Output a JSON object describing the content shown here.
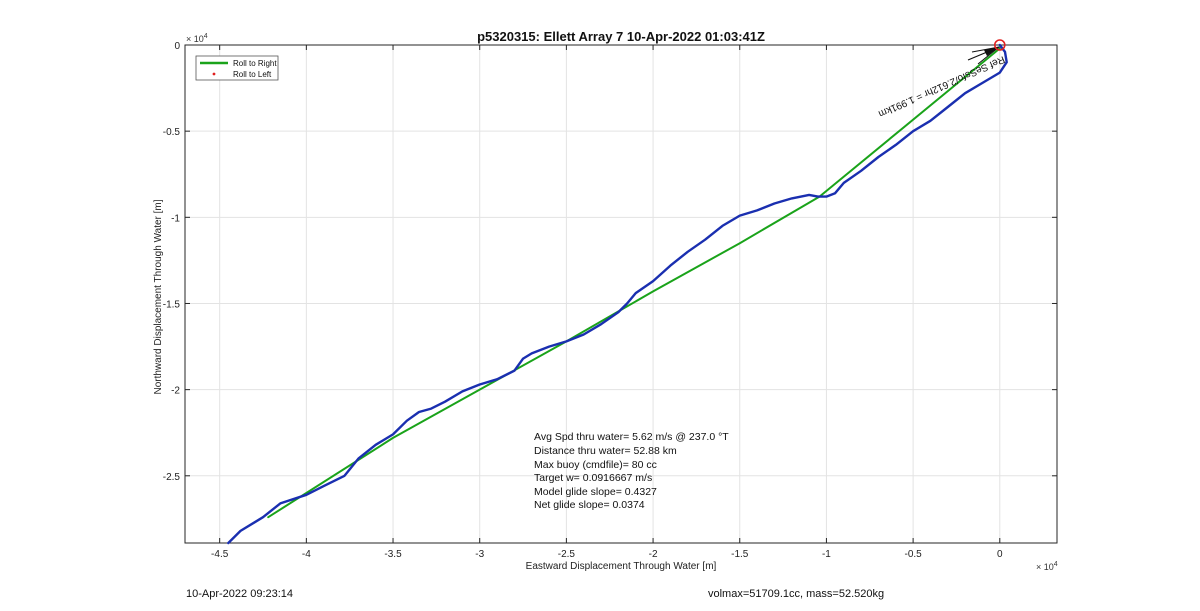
{
  "chart_data": {
    "type": "line",
    "title": "p5320315: Ellett Array 7 10-Apr-2022 01:03:41Z",
    "xlabel": "Eastward Displacement Through Water [m]",
    "ylabel": "Northward Displacement Through Water [m]",
    "x_exponent": "× 10",
    "x_exponent_power": "4",
    "y_exponent": "× 10",
    "y_exponent_power": "4",
    "xlim": [
      -4.7,
      0.33
    ],
    "ylim": [
      -2.89,
      0.0
    ],
    "x_ticks": [
      -4.5,
      -4,
      -3.5,
      -3,
      -2.5,
      -2,
      -1.5,
      -1,
      -0.5,
      0
    ],
    "x_tick_labels": [
      "-4.5",
      "-4",
      "-3.5",
      "-3",
      "-2.5",
      "-2",
      "-1.5",
      "-1",
      "-0.5",
      "0"
    ],
    "y_ticks": [
      0,
      -0.5,
      -1,
      -1.5,
      -2,
      -2.5
    ],
    "y_tick_labels": [
      "0",
      "-0.5",
      "-1",
      "-1.5",
      "-2",
      "-2.5"
    ],
    "grid": true,
    "legend_position": "top-left",
    "legend": [
      {
        "label": "Roll to Right",
        "color": "#1aa31a",
        "style": "line"
      },
      {
        "label": "Roll to Left",
        "color": "#e02020",
        "style": "dot"
      }
    ],
    "series": [
      {
        "name": "Roll to Right",
        "color": "#1aa31a",
        "x": [
          -4.22,
          -3.5,
          -3.0,
          -2.5,
          -2.0,
          -1.5,
          -1.04,
          0.0
        ],
        "y": [
          -2.74,
          -2.28,
          -2.0,
          -1.72,
          -1.43,
          -1.15,
          -0.88,
          -0.02
        ]
      },
      {
        "name": "track",
        "color": "#1a2fb0",
        "x": [
          -4.45,
          -4.38,
          -4.25,
          -4.15,
          -4.0,
          -3.9,
          -3.78,
          -3.7,
          -3.6,
          -3.5,
          -3.42,
          -3.35,
          -3.28,
          -3.2,
          -3.1,
          -3.0,
          -2.9,
          -2.8,
          -2.75,
          -2.7,
          -2.6,
          -2.5,
          -2.4,
          -2.3,
          -2.2,
          -2.15,
          -2.1,
          -2.0,
          -1.9,
          -1.8,
          -1.7,
          -1.6,
          -1.5,
          -1.4,
          -1.3,
          -1.2,
          -1.1,
          -1.05,
          -1.0,
          -0.95,
          -0.9,
          -0.8,
          -0.7,
          -0.6,
          -0.5,
          -0.4,
          -0.3,
          -0.2,
          -0.1,
          0.0,
          0.04,
          0.03,
          0.0
        ],
        "y": [
          -2.89,
          -2.82,
          -2.74,
          -2.66,
          -2.61,
          -2.56,
          -2.5,
          -2.4,
          -2.32,
          -2.26,
          -2.18,
          -2.13,
          -2.11,
          -2.07,
          -2.01,
          -1.97,
          -1.94,
          -1.89,
          -1.82,
          -1.79,
          -1.75,
          -1.72,
          -1.68,
          -1.62,
          -1.55,
          -1.5,
          -1.44,
          -1.37,
          -1.28,
          -1.2,
          -1.13,
          -1.05,
          -0.99,
          -0.96,
          -0.92,
          -0.89,
          -0.87,
          -0.88,
          -0.88,
          -0.86,
          -0.8,
          -0.73,
          -0.65,
          -0.58,
          -0.5,
          -0.44,
          -0.36,
          -0.28,
          -0.22,
          -0.16,
          -0.1,
          -0.04,
          0.0
        ]
      }
    ],
    "annotations": {
      "arrow_label": "Ref SeSsfo/2.612hr = 1.991km",
      "stats": [
        "Avg Spd thru water=  5.62 m/s @ 237.0 °T",
        "Distance thru water= 52.88 km",
        "Max buoy (cmdfile)= 80 cc",
        "Target w= 0.0916667 m/s",
        "Model glide slope= 0.4327",
        "Net glide slope= 0.0374"
      ]
    }
  },
  "footer": {
    "left": "10-Apr-2022 09:23:14",
    "right": "volmax=51709.1cc, mass=52.520kg"
  }
}
